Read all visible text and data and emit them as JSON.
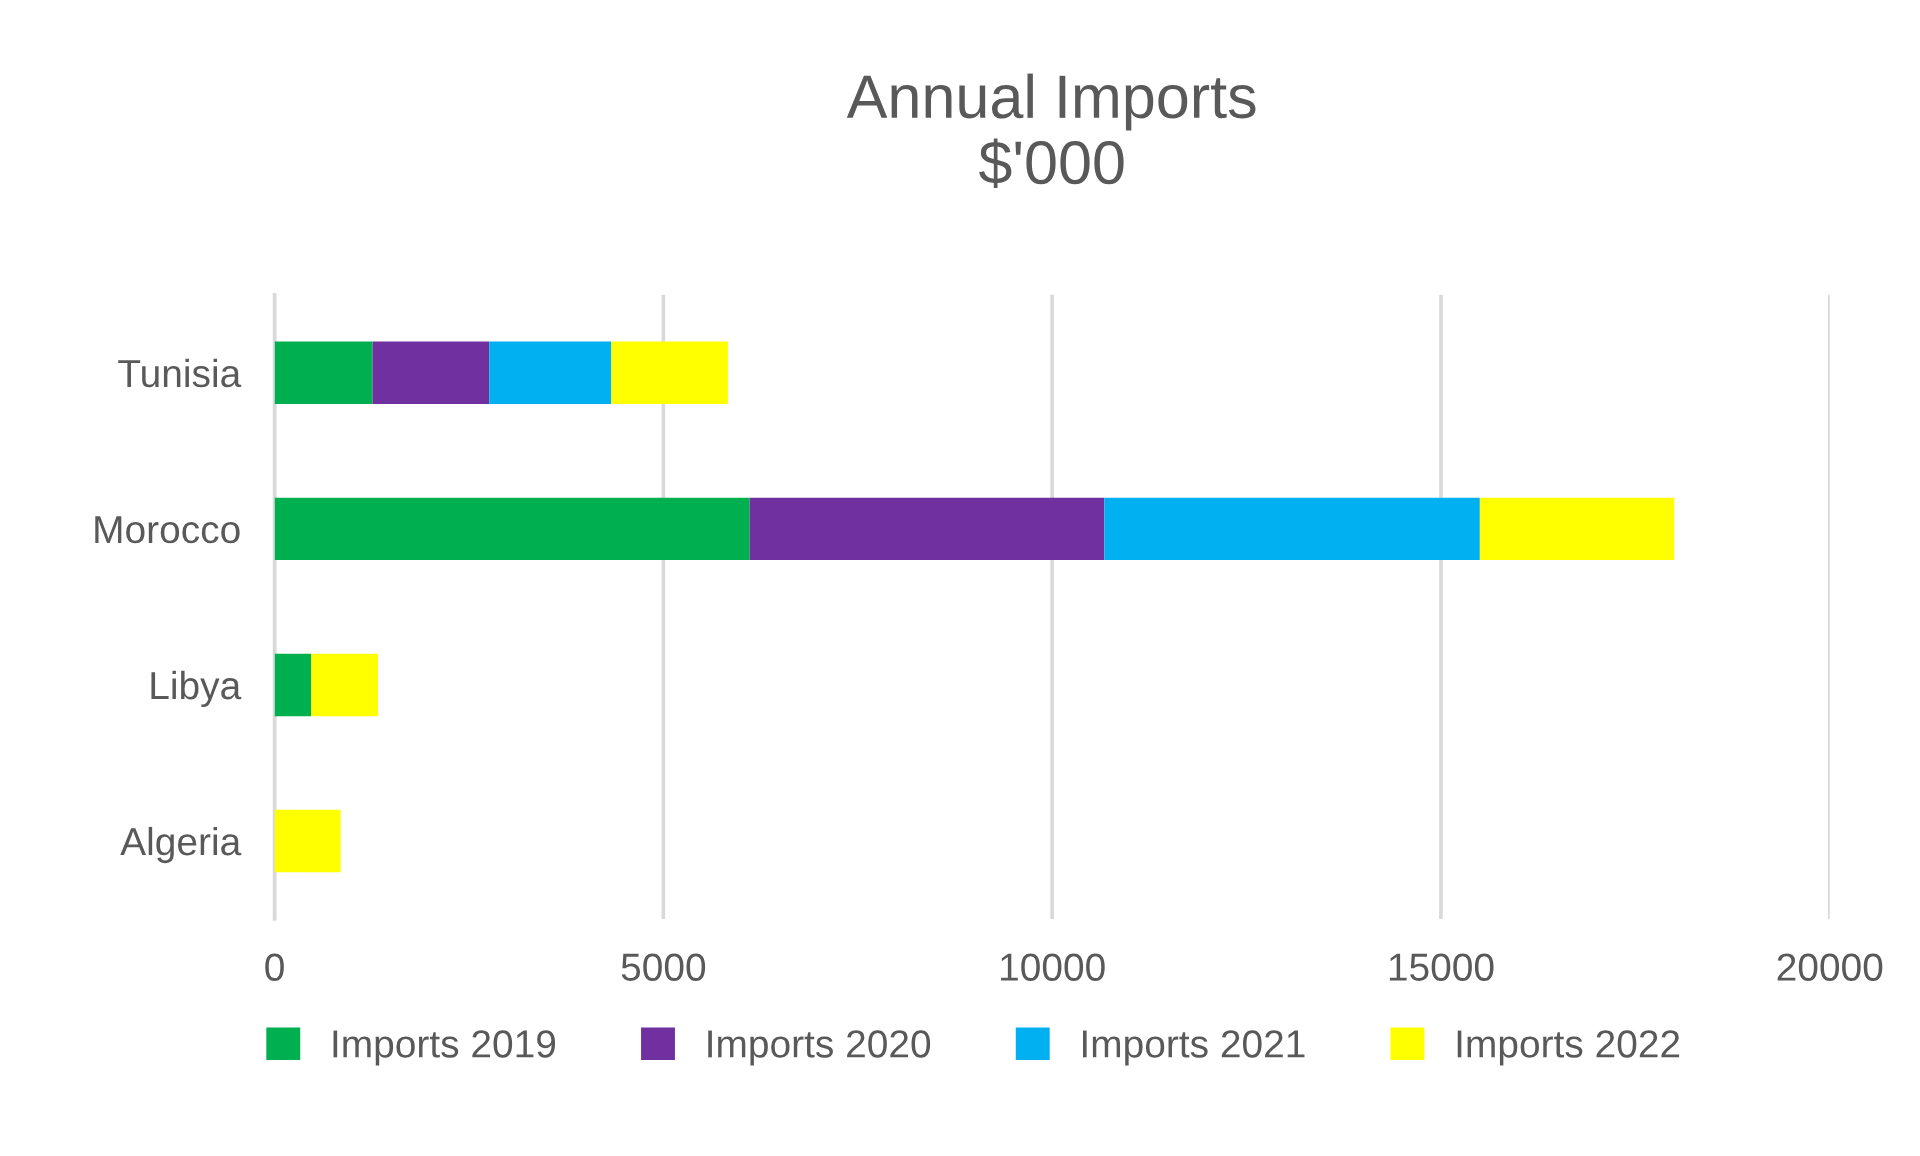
{
  "chart_data": {
    "type": "bar",
    "orientation": "horizontal",
    "stacked": true,
    "title": "Annual Imports\n$'000",
    "categories": [
      "Tunisia",
      "Morocco",
      "Libya",
      "Algeria"
    ],
    "series": [
      {
        "name": "Imports 2019",
        "color": "#00b050",
        "values": [
          1260,
          6110,
          470,
          0
        ]
      },
      {
        "name": "Imports 2020",
        "color": "#7030a0",
        "values": [
          1500,
          4560,
          0,
          0
        ]
      },
      {
        "name": "Imports 2021",
        "color": "#00b0f0",
        "values": [
          1570,
          4830,
          0,
          0
        ]
      },
      {
        "name": "Imports 2022",
        "color": "#ffff00",
        "values": [
          1500,
          2500,
          860,
          850
        ]
      }
    ],
    "xlim": [
      0,
      20000
    ],
    "xticks": [
      0,
      5000,
      10000,
      15000,
      20000
    ],
    "grid": "x",
    "legend": "bottom"
  }
}
